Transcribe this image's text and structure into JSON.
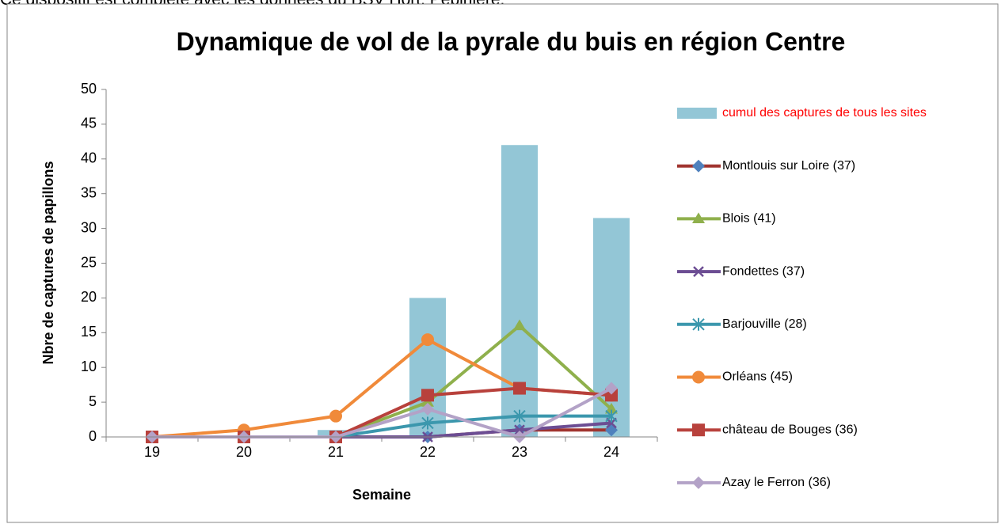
{
  "page_text": "Ce dispositif est complété avec les données du BSV Hort. Pépinière.",
  "chart_data": {
    "type": "line",
    "title": "Dynamique de vol de la pyrale du buis en région Centre",
    "x_label": "Semaine",
    "y_label": "Nbre de captures de papillons",
    "categories": [
      "19",
      "20",
      "21",
      "22",
      "23",
      "24"
    ],
    "ylim": [
      0,
      50
    ],
    "yticks": [
      0,
      5,
      10,
      15,
      20,
      25,
      30,
      35,
      40,
      45,
      50
    ],
    "grid": false,
    "legend": "right",
    "series": [
      {
        "name": "cumul des captures de tous les sites",
        "type": "bar",
        "color": "#93c6d6",
        "label_color": "#ff0000",
        "values": [
          0,
          0,
          1,
          20,
          42,
          31.5
        ]
      },
      {
        "name": "Montlouis sur Loire (37)",
        "color": "#a0342f",
        "marker": "diamond",
        "marker_color": "#4f81bd",
        "values": [
          0,
          0,
          0,
          0,
          1,
          1
        ]
      },
      {
        "name": "Blois (41)",
        "color": "#8fb04c",
        "marker": "triangle",
        "marker_color": "#8fb04c",
        "values": [
          0,
          0,
          0,
          5,
          16,
          4
        ]
      },
      {
        "name": "Fondettes (37)",
        "color": "#6c4d93",
        "marker": "x",
        "marker_color": "#6c4d93",
        "values": [
          0,
          0,
          0,
          0,
          1,
          2
        ]
      },
      {
        "name": "Barjouville (28)",
        "color": "#3b97ad",
        "marker": "star",
        "marker_color": "#3b97ad",
        "values": [
          0,
          0,
          0,
          2,
          3,
          3
        ]
      },
      {
        "name": "Orléans (45)",
        "color": "#f08a3a",
        "marker": "circle",
        "marker_color": "#f08a3a",
        "values": [
          0,
          1,
          3,
          14,
          7,
          6
        ]
      },
      {
        "name": "château de Bouges (36)",
        "color": "#b8413c",
        "marker": "square",
        "marker_color": "#b8413c",
        "values": [
          0,
          0,
          0,
          6,
          7,
          6
        ]
      },
      {
        "name": "Azay le Ferron (36)",
        "color": "#b3a2c7",
        "marker": "diamond",
        "marker_color": "#b3a2c7",
        "values": [
          0,
          0,
          0,
          4,
          0,
          7
        ]
      }
    ]
  }
}
